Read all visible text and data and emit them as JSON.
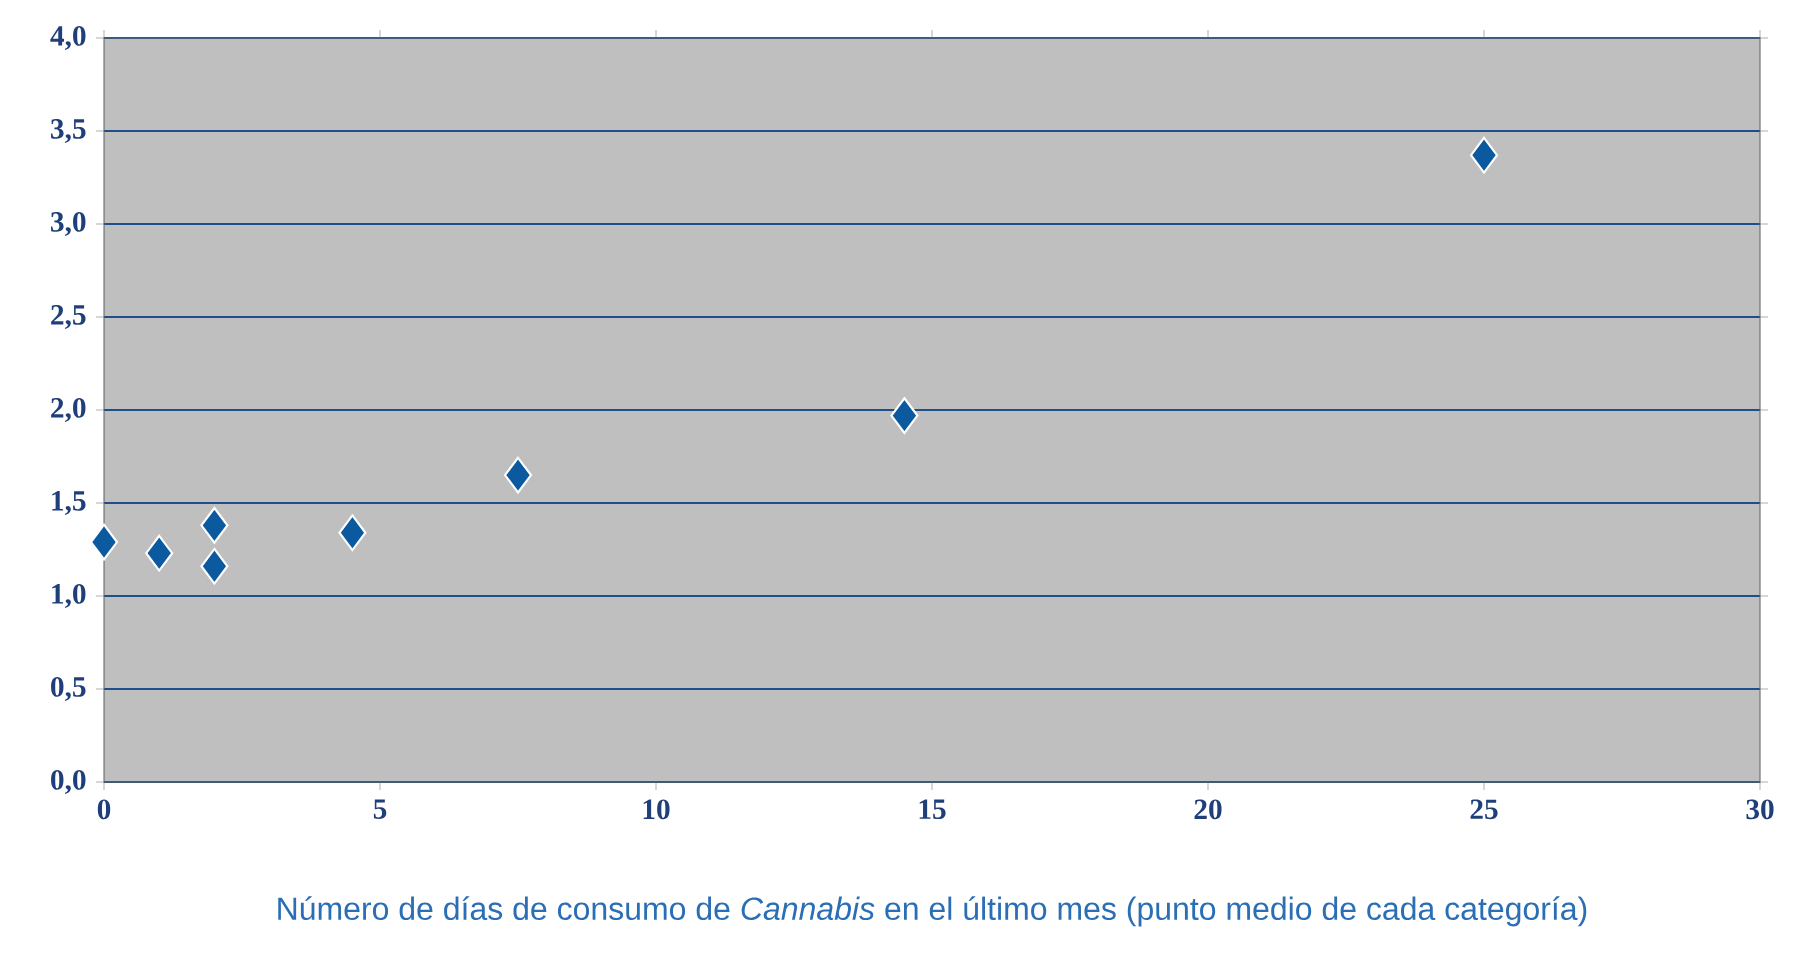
{
  "chart_data": {
    "type": "scatter",
    "xlabel": "Número de días de consumo de *Cannabis* en el último mes (punto medio de cada categoría)",
    "x": [
      0,
      1,
      2,
      2,
      4.5,
      7.5,
      14.5,
      25
    ],
    "values": [
      1.29,
      1.23,
      1.38,
      1.16,
      1.34,
      1.65,
      1.97,
      3.37
    ],
    "color": "#0b5aa0",
    "marker": "diamond",
    "xlim": [
      0,
      30
    ],
    "xticks": [
      0,
      5,
      10,
      15,
      20,
      25,
      30
    ],
    "ylim": [
      0,
      4
    ],
    "yticks": [
      {
        "value": 0,
        "label": "0,0"
      },
      {
        "value": 0.5,
        "label": "0,5"
      },
      {
        "value": 1,
        "label": "1,0"
      },
      {
        "value": 1.5,
        "label": "1,5"
      },
      {
        "value": 2,
        "label": "2,0"
      },
      {
        "value": 2.5,
        "label": "2,5"
      },
      {
        "value": 3,
        "label": "3,0"
      },
      {
        "value": 3.5,
        "label": "3,5"
      },
      {
        "value": 4,
        "label": "4,0"
      }
    ],
    "grid": "y"
  }
}
